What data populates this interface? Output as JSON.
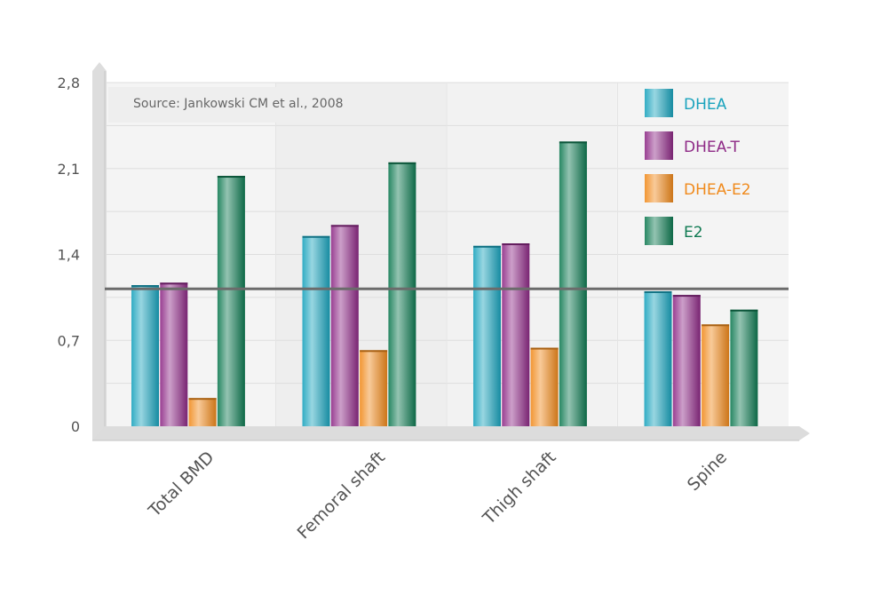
{
  "source_note": "Source: Jankowski CM et al., 2008",
  "chart_data": {
    "type": "bar",
    "categories": [
      "Total BMD",
      "Femoral shaft",
      "Thigh shaft",
      "Spine"
    ],
    "series": [
      {
        "name": "DHEA",
        "color": "#1aa3bd",
        "values": [
          1.15,
          1.55,
          1.47,
          1.1
        ]
      },
      {
        "name": "DHEA-T",
        "color": "#8e2a86",
        "values": [
          1.17,
          1.64,
          1.49,
          1.07
        ]
      },
      {
        "name": "DHEA-E2",
        "color": "#f08a1c",
        "values": [
          0.23,
          0.62,
          0.64,
          0.83
        ]
      },
      {
        "name": "E2",
        "color": "#0f7a52",
        "values": [
          2.04,
          2.15,
          2.32,
          0.95
        ]
      }
    ],
    "y_ticks": [
      "0",
      "0,7",
      "1,4",
      "2,1",
      "2,8"
    ],
    "ylim": [
      0,
      2.8
    ],
    "reference_line": 1.12,
    "grid": true,
    "legend_position": "top-right",
    "xlabel": "",
    "ylabel": ""
  }
}
